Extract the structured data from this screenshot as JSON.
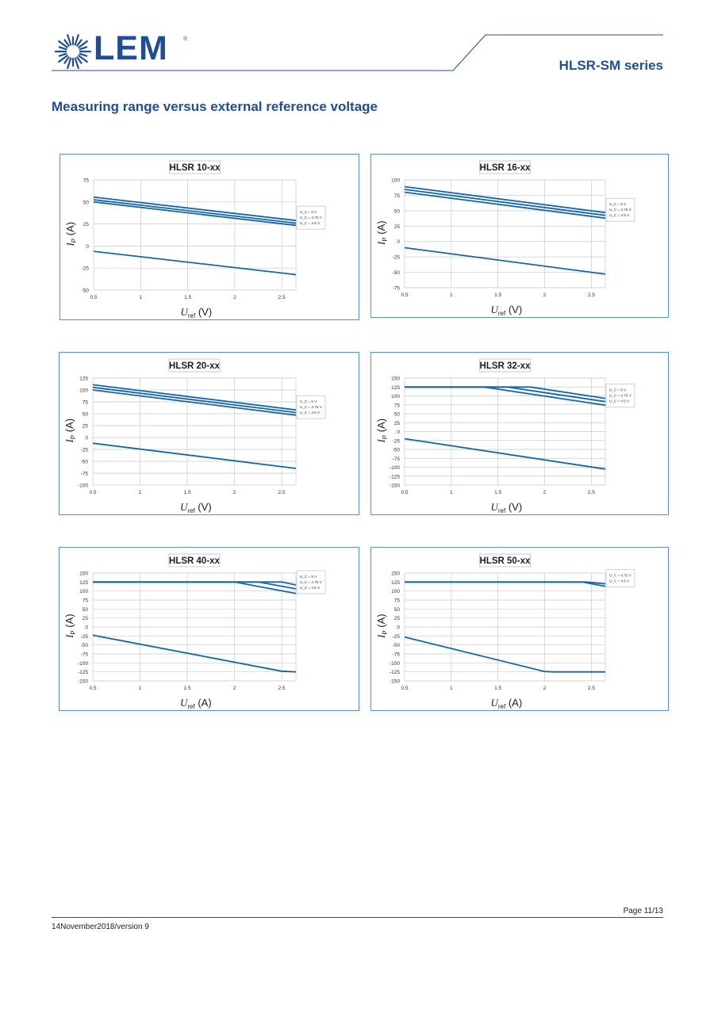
{
  "header": {
    "logo_text": "LEM",
    "logo_reg": "®",
    "series": "HLSR-SM series"
  },
  "page_title": "Measuring range versus external reference voltage",
  "footer": {
    "page": "Page 11/13",
    "version": "14November2018/version 9"
  },
  "colors": {
    "brand": "#1f4e96",
    "line": "#1565a9",
    "grid": "#c9c9c9",
    "frame": "#5b8ec4"
  },
  "chart_data": [
    {
      "type": "line",
      "title": "HLSR 10-xx",
      "xlabel_sym": "U",
      "xlabel_sub": "ref",
      "xlabel_unit": "(V)",
      "ylabel_sym": "I",
      "ylabel_sub": "P",
      "ylabel_unit": "(A)",
      "xlim": [
        0.5,
        2.65
      ],
      "xticks": [
        "0.5",
        "1",
        "1.5",
        "2",
        "2.5"
      ],
      "ylim": [
        -50,
        75
      ],
      "yticks": [
        "75",
        "50",
        "25",
        "0",
        "-25",
        "-50"
      ],
      "legend": [
        "U_C = 5 V",
        "U_C = 4.75 V",
        "U_C = 4.5 V"
      ],
      "legend_position": "right",
      "series": [
        {
          "values": [
            [
              0.5,
              55.5
            ],
            [
              2.65,
              29
            ]
          ]
        },
        {
          "values": [
            [
              0.5,
              52.5
            ],
            [
              2.65,
              26
            ]
          ]
        },
        {
          "values": [
            [
              0.5,
              50
            ],
            [
              2.65,
              23.5
            ]
          ]
        },
        {
          "values": [
            [
              0.5,
              -6
            ],
            [
              2.65,
              -32.5
            ]
          ]
        }
      ]
    },
    {
      "type": "line",
      "title": "HLSR 16-xx",
      "xlabel_sym": "U",
      "xlabel_sub": "ref",
      "xlabel_unit": "(V)",
      "ylabel_sym": "I",
      "ylabel_sub": "P",
      "ylabel_unit": "(A)",
      "xlim": [
        0.5,
        2.65
      ],
      "xticks": [
        "0.5",
        "1",
        "1.5",
        "2",
        "2.5"
      ],
      "ylim": [
        -75,
        100
      ],
      "yticks": [
        "100",
        "75",
        "50",
        "25",
        "0",
        "-25",
        "-50",
        "-75"
      ],
      "legend": [
        "U_C = 5 V",
        "U_C = 4.75 V",
        "U_C = 4.5 V"
      ],
      "legend_position": "right",
      "series": [
        {
          "values": [
            [
              0.5,
              89
            ],
            [
              2.65,
              47
            ]
          ]
        },
        {
          "values": [
            [
              0.5,
              84.5
            ],
            [
              2.65,
              42.5
            ]
          ]
        },
        {
          "values": [
            [
              0.5,
              80
            ],
            [
              2.65,
              38
            ]
          ]
        },
        {
          "values": [
            [
              0.5,
              -10
            ],
            [
              2.65,
              -53
            ]
          ]
        }
      ]
    },
    {
      "type": "line",
      "title": "HLSR 20-xx",
      "xlabel_sym": "U",
      "xlabel_sub": "ref",
      "xlabel_unit": "(V)",
      "ylabel_sym": "I",
      "ylabel_sub": "P",
      "ylabel_unit": "(A)",
      "xlim": [
        0.5,
        2.65
      ],
      "xticks": [
        "0.5",
        "1",
        "1.5",
        "2",
        "2.5"
      ],
      "ylim": [
        -100,
        125
      ],
      "yticks": [
        "125",
        "100",
        "75",
        "50",
        "25",
        "0",
        "-25",
        "-50",
        "-75",
        "-100"
      ],
      "legend": [
        "U_C = 5 V",
        "U_C = 4.75 V",
        "U_C = 4.5 V"
      ],
      "legend_position": "right",
      "series": [
        {
          "values": [
            [
              0.5,
              111
            ],
            [
              2.65,
              58
            ]
          ]
        },
        {
          "values": [
            [
              0.5,
              105.5
            ],
            [
              2.65,
              52.5
            ]
          ]
        },
        {
          "values": [
            [
              0.5,
              100
            ],
            [
              2.65,
              47
            ]
          ]
        },
        {
          "values": [
            [
              0.5,
              -12
            ],
            [
              2.65,
              -65
            ]
          ]
        }
      ]
    },
    {
      "type": "line",
      "title": "HLSR 32-xx",
      "xlabel_sym": "U",
      "xlabel_sub": "ref",
      "xlabel_unit": "(V)",
      "ylabel_sym": "I",
      "ylabel_sub": "P",
      "ylabel_unit": "(A)",
      "xlim": [
        0.5,
        2.65
      ],
      "xticks": [
        "0.5",
        "1",
        "1.5",
        "2",
        "2.5"
      ],
      "ylim": [
        -150,
        150
      ],
      "yticks": [
        "150",
        "125",
        "100",
        "75",
        "50",
        "25",
        "0",
        "-25",
        "-50",
        "-75",
        "-100",
        "-125",
        "-150"
      ],
      "legend": [
        "U_C = 5 V",
        "U_C = 4.75 V",
        "U_C = 4.5 V"
      ],
      "legend_position": "right",
      "series": [
        {
          "values": [
            [
              0.5,
              125
            ],
            [
              1.85,
              125
            ],
            [
              2.65,
              93
            ]
          ]
        },
        {
          "values": [
            [
              0.5,
              125
            ],
            [
              1.6,
              125
            ],
            [
              2.65,
              84
            ]
          ]
        },
        {
          "values": [
            [
              0.5,
              125
            ],
            [
              1.35,
              125
            ],
            [
              2.65,
              74
            ]
          ]
        },
        {
          "values": [
            [
              0.5,
              -20
            ],
            [
              2.65,
              -105
            ]
          ]
        }
      ]
    },
    {
      "type": "line",
      "title": "HLSR 40-xx",
      "xlabel_sym": "U",
      "xlabel_sub": "ref",
      "xlabel_unit": "(A)",
      "ylabel_sym": "I",
      "ylabel_sub": "P",
      "ylabel_unit": "(A)",
      "xlim": [
        0.5,
        2.65
      ],
      "xticks": [
        "0.5",
        "1",
        "1.5",
        "2",
        "2.5"
      ],
      "ylim": [
        -150,
        150
      ],
      "yticks": [
        "150",
        "125",
        "100",
        "75",
        "50",
        "25",
        "0",
        "-25",
        "-50",
        "-75",
        "-100",
        "-125",
        "-150"
      ],
      "legend": [
        "U_C = 5 V",
        "U_C = 4.75 V",
        "U_C = 4.5 V"
      ],
      "legend_position": "right",
      "series": [
        {
          "values": [
            [
              0.5,
              125
            ],
            [
              2.5,
              125
            ],
            [
              2.65,
              117
            ]
          ]
        },
        {
          "values": [
            [
              0.5,
              125
            ],
            [
              2.25,
              125
            ],
            [
              2.65,
              106
            ]
          ]
        },
        {
          "values": [
            [
              0.5,
              125
            ],
            [
              2.0,
              125
            ],
            [
              2.65,
              93
            ]
          ]
        },
        {
          "values": [
            [
              0.5,
              -23
            ],
            [
              2.5,
              -123
            ],
            [
              2.65,
              -125
            ]
          ]
        }
      ]
    },
    {
      "type": "line",
      "title": "HLSR 50-xx",
      "xlabel_sym": "U",
      "xlabel_sub": "ref",
      "xlabel_unit": "(A)",
      "ylabel_sym": "I",
      "ylabel_sub": "P",
      "ylabel_unit": "(A)",
      "xlim": [
        0.5,
        2.65
      ],
      "xticks": [
        "0.5",
        "1",
        "1.5",
        "2",
        "2.5"
      ],
      "ylim": [
        -150,
        150
      ],
      "yticks": [
        "150",
        "125",
        "100",
        "75",
        "50",
        "25",
        "0",
        "-25",
        "-50",
        "-75",
        "-100",
        "-125",
        "-150"
      ],
      "legend": [
        "U_C = 4.75 V",
        "U_C = 4.5 V"
      ],
      "legend_position": "right",
      "series": [
        {
          "values": [
            [
              0.5,
              125
            ],
            [
              2.45,
              125
            ],
            [
              2.65,
              120
            ]
          ]
        },
        {
          "values": [
            [
              0.5,
              125
            ],
            [
              2.4,
              125
            ],
            [
              2.65,
              113
            ]
          ]
        },
        {
          "values": [
            [
              0.5,
              -28
            ],
            [
              2.0,
              -124
            ],
            [
              2.1,
              -125
            ],
            [
              2.65,
              -125
            ]
          ]
        }
      ]
    }
  ]
}
